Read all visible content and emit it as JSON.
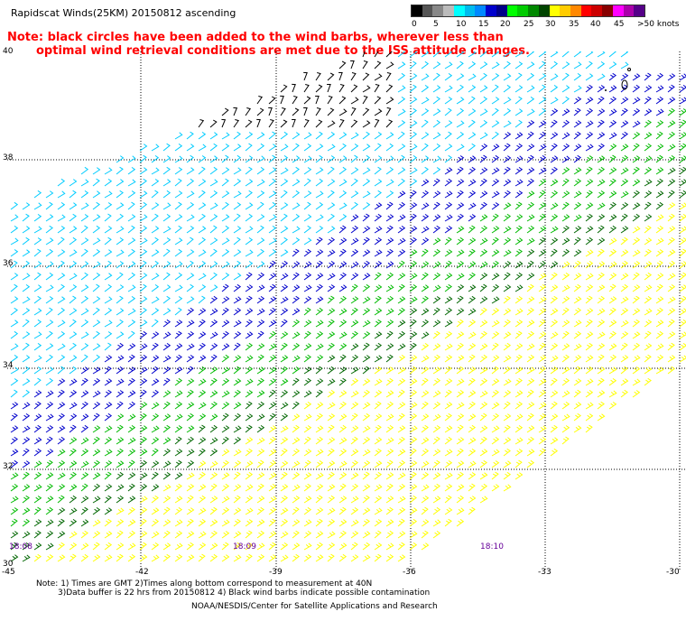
{
  "header": {
    "title": "Rapidscat Winds(25KM) 20150812 ascending",
    "note_line1": "Note: black circles have been added to the wind barbs, wherever less than",
    "note_line2": "optimal wind retrieval conditions are met due to the ISS attitude changes."
  },
  "legend": {
    "labels": [
      "0",
      "5",
      "10",
      "15",
      "20",
      "25",
      "30",
      "35",
      "40",
      "45",
      ">50 knots"
    ],
    "colors": [
      "#000000",
      "#555555",
      "#888888",
      "#bbbbbb",
      "#00ffff",
      "#00bbee",
      "#0088ff",
      "#0000cc",
      "#000088",
      "#00ff00",
      "#00cc00",
      "#008800",
      "#004400",
      "#ffff00",
      "#ffcc00",
      "#ff8800",
      "#ff0000",
      "#cc0000",
      "#880000",
      "#ff00ff",
      "#aa00aa",
      "#550088"
    ]
  },
  "axes": {
    "lat_labels": [
      "40",
      "38",
      "36",
      "34",
      "32",
      "30"
    ],
    "lon_labels": [
      "-45",
      "-42",
      "-39",
      "-36",
      "-33",
      "-30"
    ]
  },
  "times": [
    "18:08",
    "18:09",
    "18:10"
  ],
  "footer": {
    "line1": "Note: 1) Times are GMT 2)Times along bottom correspond to measurement at 40N",
    "line2": "3)Data buffer is 22 hrs from 20150812 4) Black wind barbs indicate possible contamination",
    "credit": "NOAA/NESDIS/Center for Satellite Applications and Research"
  },
  "wind_colors": {
    "calm": "#000000",
    "light": "#00ccff",
    "moderate": "#0000cc",
    "fresh": "#00bb00",
    "strong": "#006600",
    "gale": "#ffff00"
  }
}
